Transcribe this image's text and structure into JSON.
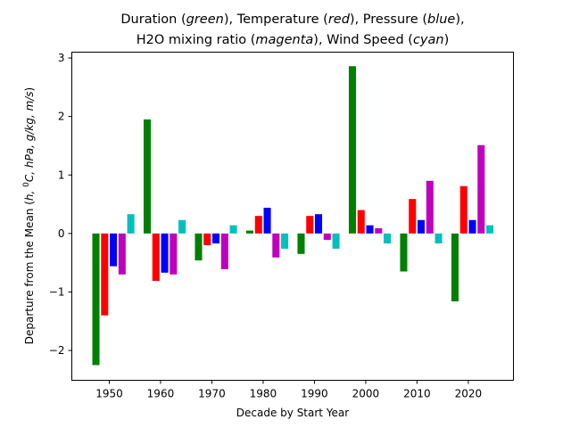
{
  "chart_data": {
    "type": "bar",
    "title_line1": [
      {
        "text": "Duration (",
        "italic": false
      },
      {
        "text": "green",
        "italic": true
      },
      {
        "text": "),  Temperature (",
        "italic": false
      },
      {
        "text": "red",
        "italic": true
      },
      {
        "text": "),  Pressure (",
        "italic": false
      },
      {
        "text": "blue",
        "italic": true
      },
      {
        "text": "),",
        "italic": false
      }
    ],
    "title_line2": [
      {
        "text": "H2O mixing ratio (",
        "italic": false
      },
      {
        "text": "magenta",
        "italic": true
      },
      {
        "text": "), Wind Speed (",
        "italic": false
      },
      {
        "text": "cyan",
        "italic": true
      },
      {
        "text": ")",
        "italic": false
      }
    ],
    "xlabel": "Decade by Start Year",
    "ylabel": "Departure from the Mean (h, 0C, hPa, g/kg, m/s)",
    "ylabel_parts": [
      {
        "text": "Departure from the Mean (",
        "italic": false
      },
      {
        "text": "h",
        "italic": true
      },
      {
        "text": ", ",
        "italic": true
      },
      {
        "text": "0",
        "italic": false,
        "sup": true
      },
      {
        "text": "C, hPa, g/kg, m/s",
        "italic": true
      },
      {
        "text": ")",
        "italic": false
      }
    ],
    "categories": [
      1950,
      1960,
      1970,
      1980,
      1990,
      2000,
      2010,
      2020
    ],
    "xticks": [
      "1950",
      "1960",
      "1970",
      "1980",
      "1990",
      "2000",
      "2010",
      "2020"
    ],
    "yticks": [
      -2,
      -1,
      0,
      1,
      2,
      3
    ],
    "ytick_labels": [
      "−2",
      "−1",
      "0",
      "1",
      "2",
      "3"
    ],
    "xlim": [
      1942.7,
      2028.8
    ],
    "ylim": [
      -2.51,
      3.1
    ],
    "grid": false,
    "legend": "none",
    "series": [
      {
        "name": "Duration",
        "color": "#008000",
        "values": [
          -2.25,
          1.95,
          -0.46,
          0.05,
          -0.35,
          2.86,
          -0.65,
          -1.16
        ]
      },
      {
        "name": "Temperature",
        "color": "#ff0000",
        "values": [
          -1.4,
          -0.81,
          -0.2,
          0.3,
          0.3,
          0.4,
          0.59,
          0.81
        ]
      },
      {
        "name": "Pressure",
        "color": "#0000ff",
        "values": [
          -0.56,
          -0.67,
          -0.17,
          0.44,
          0.33,
          0.14,
          0.23,
          0.23
        ]
      },
      {
        "name": "H2O mixing ratio",
        "color": "#bf00bf",
        "values": [
          -0.7,
          -0.7,
          -0.61,
          -0.41,
          -0.11,
          0.09,
          0.9,
          1.51
        ]
      },
      {
        "name": "Wind Speed",
        "color": "#00bfbf",
        "values": [
          0.33,
          0.23,
          0.14,
          -0.26,
          -0.26,
          -0.17,
          -0.17,
          0.14
        ]
      }
    ]
  }
}
